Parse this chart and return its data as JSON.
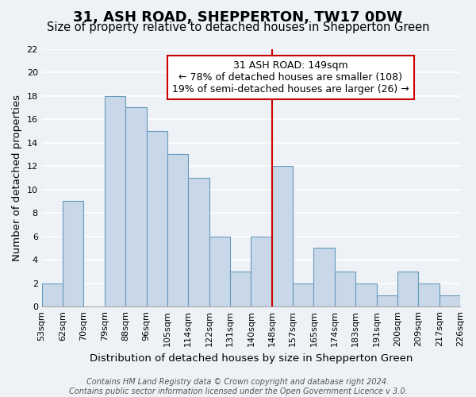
{
  "title": "31, ASH ROAD, SHEPPERTON, TW17 0DW",
  "subtitle": "Size of property relative to detached houses in Shepperton Green",
  "xlabel": "Distribution of detached houses by size in Shepperton Green",
  "ylabel": "Number of detached properties",
  "footer_line1": "Contains HM Land Registry data © Crown copyright and database right 2024.",
  "footer_line2": "Contains public sector information licensed under the Open Government Licence v 3.0.",
  "bin_edges": [
    "53sqm",
    "62sqm",
    "70sqm",
    "79sqm",
    "88sqm",
    "96sqm",
    "105sqm",
    "114sqm",
    "122sqm",
    "131sqm",
    "140sqm",
    "148sqm",
    "157sqm",
    "165sqm",
    "174sqm",
    "183sqm",
    "191sqm",
    "200sqm",
    "209sqm",
    "217sqm",
    "226sqm"
  ],
  "bar_values": [
    2,
    9,
    0,
    18,
    17,
    15,
    13,
    11,
    6,
    3,
    6,
    12,
    2,
    5,
    3,
    2,
    1,
    3,
    2,
    1
  ],
  "bar_color": "#c8d8e8",
  "bar_edge_color": "#6699bb",
  "highlight_bin_index": 11,
  "highlight_line_color": "#cc0000",
  "ylim": [
    0,
    22
  ],
  "ytick_max": 22,
  "ytick_step": 2,
  "annotation_title": "31 ASH ROAD: 149sqm",
  "annotation_line1": "← 78% of detached houses are smaller (108)",
  "annotation_line2": "19% of semi-detached houses are larger (26) →",
  "annotation_box_color": "#ffffff",
  "annotation_box_edge_color": "#cc0000",
  "background_color": "#eef2f7",
  "plot_background_color": "#eef2f7",
  "grid_color": "#ffffff",
  "title_fontsize": 13,
  "subtitle_fontsize": 10.5,
  "ylabel_fontsize": 9.5,
  "xlabel_fontsize": 9.5,
  "tick_fontsize": 8,
  "annotation_fontsize": 9,
  "footer_fontsize": 7
}
